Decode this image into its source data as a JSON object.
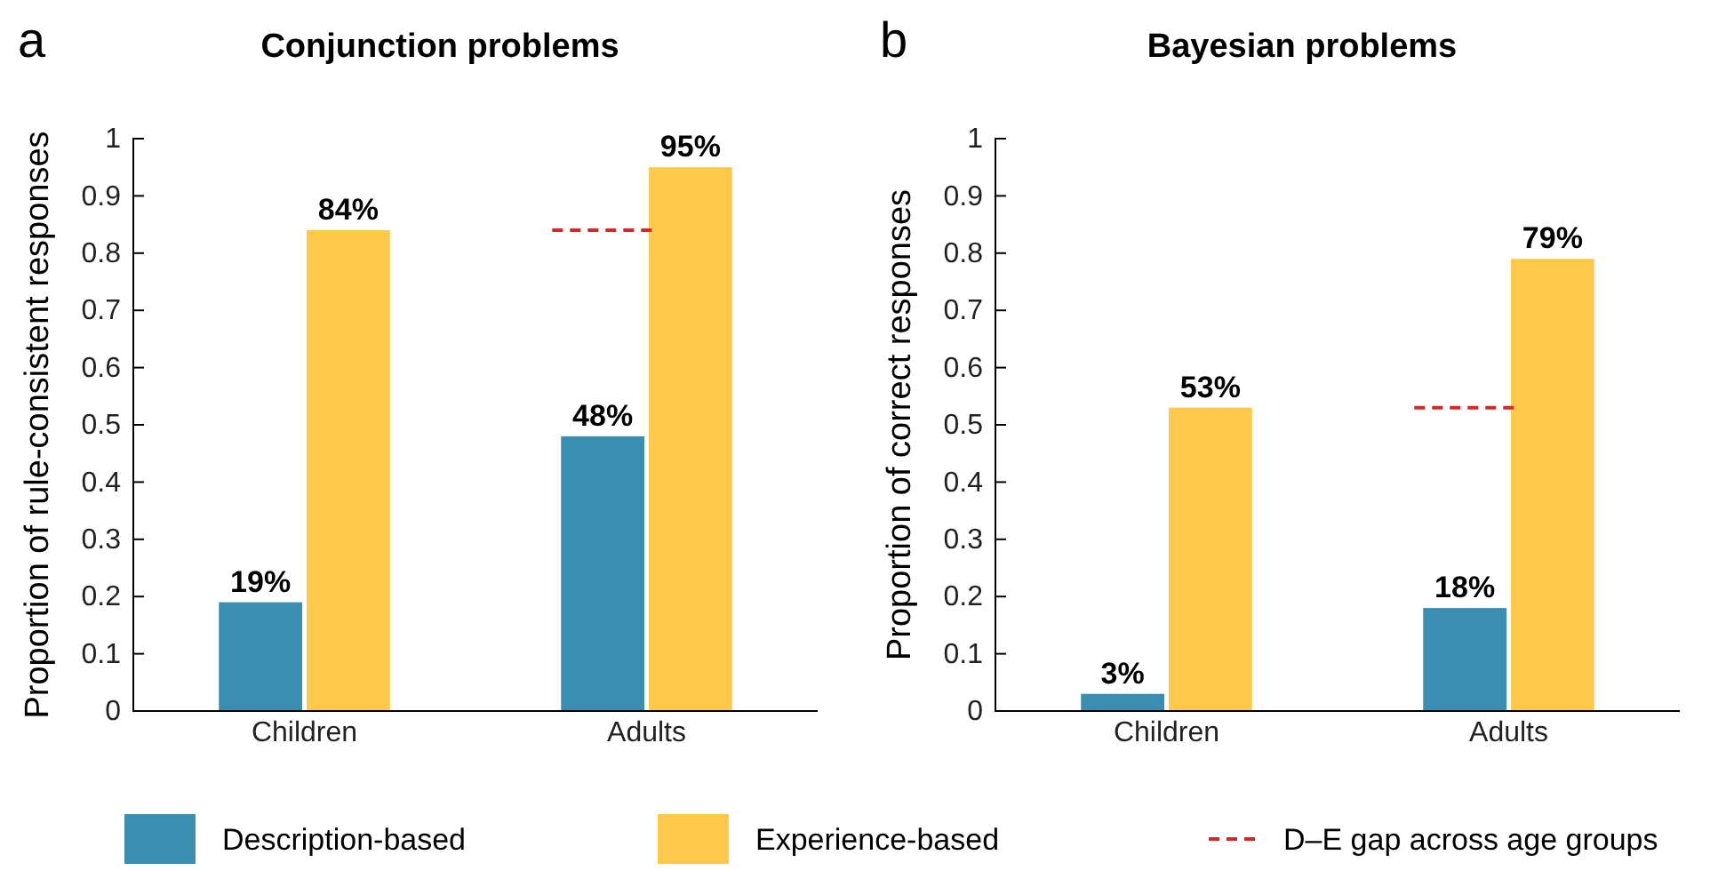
{
  "chart_data": [
    {
      "type": "bar",
      "title": "Conjunction problems",
      "annotations": [
        "a"
      ],
      "ylabel": "Proportion of rule-consistent responses",
      "categories": [
        "Children",
        "Adults"
      ],
      "series": [
        {
          "name": "Description-based",
          "color": "#3a8fb0",
          "values": [
            0.19,
            0.48
          ],
          "value_labels": [
            "19%",
            "48%"
          ]
        },
        {
          "name": "Experience-based",
          "color": "#fec84a",
          "values": [
            0.84,
            0.95
          ],
          "value_labels": [
            "84%",
            "95%"
          ]
        }
      ],
      "ylim": [
        0,
        1
      ],
      "yticks": [
        0,
        0.1,
        0.2,
        0.3,
        0.4,
        0.5,
        0.6,
        0.7,
        0.8,
        0.9,
        1
      ],
      "grid": false,
      "legend": "bottom",
      "ref_lines": [
        {
          "axis": "y",
          "value": 0.84,
          "label": "D–E gap across age groups",
          "color": "#d62728",
          "line_style": "dashed"
        }
      ]
    },
    {
      "type": "bar",
      "title": "Bayesian problems",
      "annotations": [
        "b"
      ],
      "ylabel": "Proportion of correct responses",
      "categories": [
        "Children",
        "Adults"
      ],
      "series": [
        {
          "color": "#3a8fb0",
          "values": [
            0.03,
            0.18
          ],
          "value_labels": [
            "3%",
            "18%"
          ]
        },
        {
          "color": "#fec84a",
          "values": [
            0.53,
            0.79
          ],
          "value_labels": [
            "53%",
            "79%"
          ]
        }
      ],
      "ylim": [
        0,
        1
      ],
      "yticks": [
        0,
        0.1,
        0.2,
        0.3,
        0.4,
        0.5,
        0.6,
        0.7,
        0.8,
        0.9,
        1
      ],
      "grid": false,
      "ref_lines": [
        {
          "axis": "y",
          "value": 0.53,
          "color": "#d62728",
          "line_style": "dashed"
        }
      ]
    }
  ]
}
